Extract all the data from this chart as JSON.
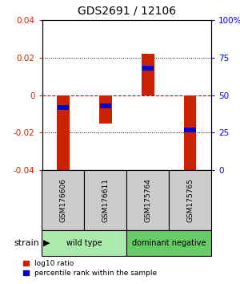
{
  "title": "GDS2691 / 12106",
  "samples": [
    "GSM176606",
    "GSM176611",
    "GSM175764",
    "GSM175765"
  ],
  "log10_ratio": [
    -0.04,
    -0.015,
    0.022,
    -0.04
  ],
  "percentile_rank": [
    0.42,
    0.43,
    0.68,
    0.27
  ],
  "ylim": [
    -0.04,
    0.04
  ],
  "yticks_left": [
    -0.04,
    -0.02,
    0.0,
    0.02,
    0.04
  ],
  "yticks_right_labels": [
    "0",
    "25",
    "50",
    "75",
    "100%"
  ],
  "groups": [
    {
      "label": "wild type",
      "sample_indices": [
        0,
        1
      ],
      "color": "#aaeaaa"
    },
    {
      "label": "dominant negative",
      "sample_indices": [
        2,
        3
      ],
      "color": "#66cc66"
    }
  ],
  "bar_color_red": "#cc2200",
  "bar_color_blue": "#0000cc",
  "zero_line_color": "#cc0000",
  "grid_color": "#000000",
  "legend_red": "log10 ratio",
  "legend_blue": "percentile rank within the sample",
  "strain_label": "strain"
}
